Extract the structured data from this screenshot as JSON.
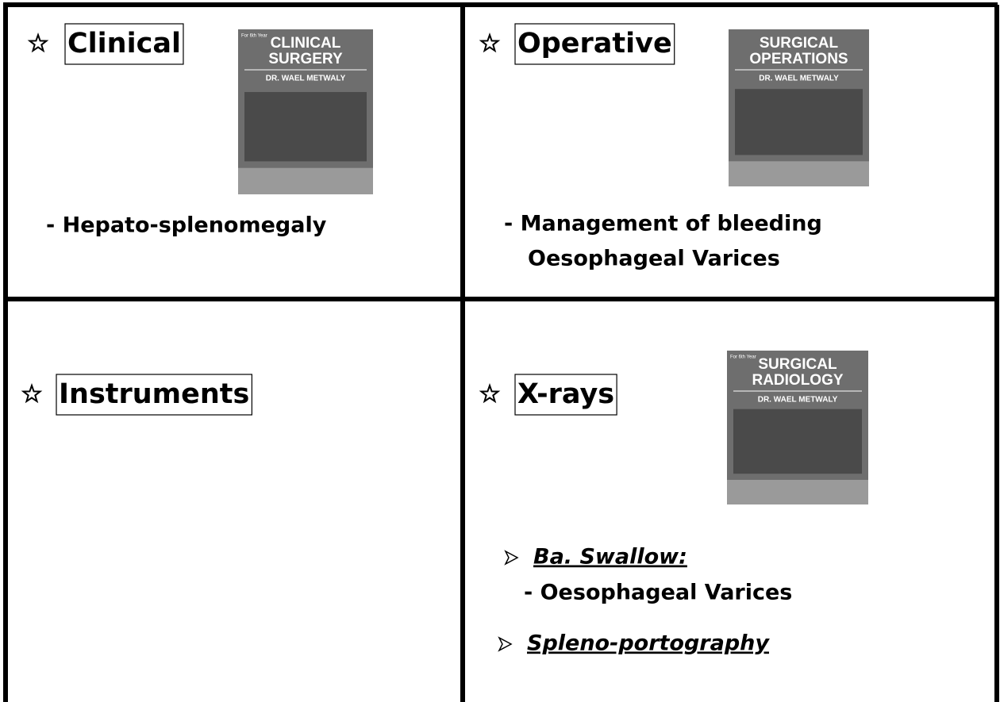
{
  "cells": [
    {
      "heading": "Clinical",
      "book": {
        "edition": "For 6th Year",
        "title": [
          "CLINICAL",
          "SURGERY"
        ],
        "author": "DR. WAEL METWALY"
      },
      "items": [
        "- Hepato-splenomegaly"
      ]
    },
    {
      "heading": "Operative",
      "book": {
        "title": [
          "SURGICAL",
          "OPERATIONS"
        ],
        "author": "DR. WAEL METWALY"
      },
      "items": [
        "- Management of bleeding",
        "Oesophageal Varices"
      ]
    },
    {
      "heading": "Instruments"
    },
    {
      "heading": "X-rays",
      "book": {
        "edition": "For 6th Year",
        "title": [
          "SURGICAL",
          "RADIOLOGY"
        ],
        "author": "DR. WAEL METWALY"
      },
      "items": [
        "Ba. Swallow:",
        "- Oesophageal Varices",
        "Spleno-portography"
      ]
    }
  ]
}
